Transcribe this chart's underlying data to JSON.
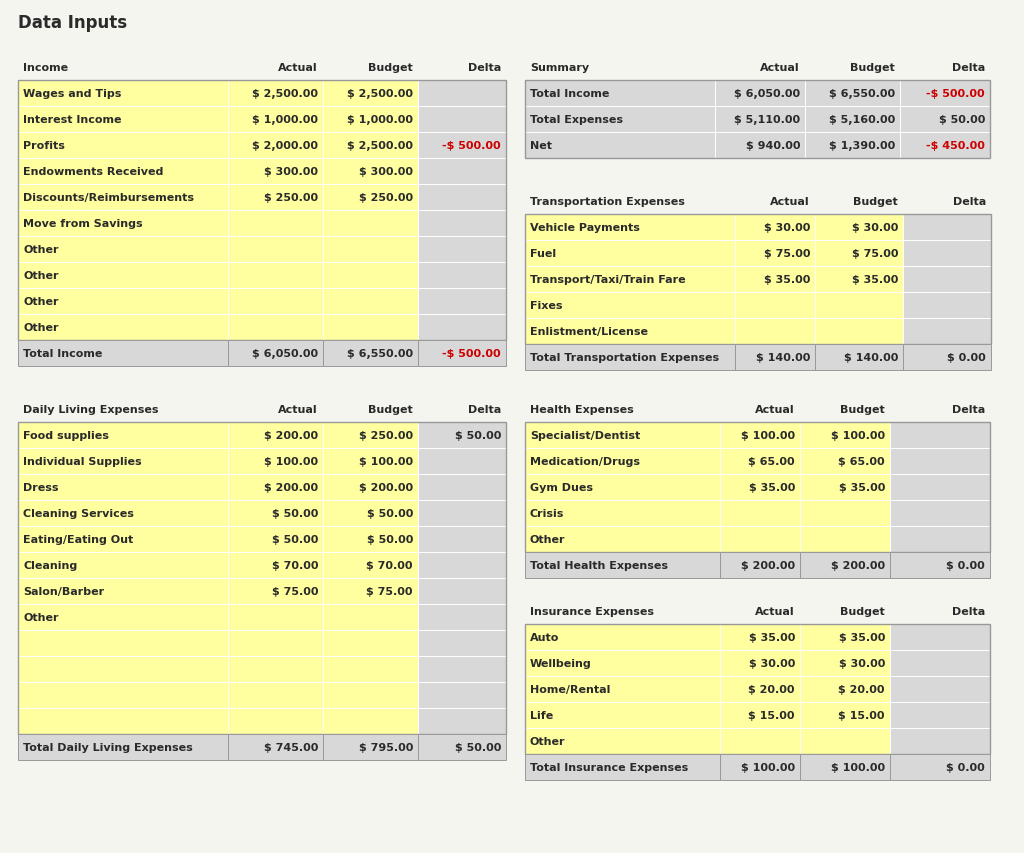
{
  "title": "Data Inputs",
  "bg_color": "#f5f5f0",
  "yellow": "#ffffa0",
  "light_gray": "#d8d8d8",
  "white": "#ffffff",
  "dark_text": "#2a2a2a",
  "red_text": "#cc0000",
  "border_color": "#999999",
  "income_header": [
    "Income",
    "Actual",
    "Budget",
    "Delta"
  ],
  "income_rows": [
    [
      "Wages and Tips",
      "$ 2,500.00",
      "$ 2,500.00",
      ""
    ],
    [
      "Interest Income",
      "$ 1,000.00",
      "$ 1,000.00",
      ""
    ],
    [
      "Profits",
      "$ 2,000.00",
      "$ 2,500.00",
      "-$ 500.00"
    ],
    [
      "Endowments Received",
      "$ 300.00",
      "$ 300.00",
      ""
    ],
    [
      "Discounts/Reimbursements",
      "$ 250.00",
      "$ 250.00",
      ""
    ],
    [
      "Move from Savings",
      "",
      "",
      ""
    ],
    [
      "Other",
      "",
      "",
      ""
    ],
    [
      "Other",
      "",
      "",
      ""
    ],
    [
      "Other",
      "",
      "",
      ""
    ],
    [
      "Other",
      "",
      "",
      ""
    ]
  ],
  "income_total": [
    "Total Income",
    "$ 6,050.00",
    "$ 6,550.00",
    "-$ 500.00"
  ],
  "summary_header": [
    "Summary",
    "Actual",
    "Budget",
    "Delta"
  ],
  "summary_rows": [
    [
      "Total Income",
      "$ 6,050.00",
      "$ 6,550.00",
      "-$ 500.00"
    ],
    [
      "Total Expenses",
      "$ 5,110.00",
      "$ 5,160.00",
      "$ 50.00"
    ],
    [
      "Net",
      "$ 940.00",
      "$ 1,390.00",
      "-$ 450.00"
    ]
  ],
  "transport_header": [
    "Transportation Expenses",
    "Actual",
    "Budget",
    "Delta"
  ],
  "transport_rows": [
    [
      "Vehicle Payments",
      "$ 30.00",
      "$ 30.00",
      ""
    ],
    [
      "Fuel",
      "$ 75.00",
      "$ 75.00",
      ""
    ],
    [
      "Transport/Taxi/Train Fare",
      "$ 35.00",
      "$ 35.00",
      ""
    ],
    [
      "Fixes",
      "",
      "",
      ""
    ],
    [
      "Enlistment/License",
      "",
      "",
      ""
    ]
  ],
  "transport_total": [
    "Total Transportation Expenses",
    "$ 140.00",
    "$ 140.00",
    "$ 0.00"
  ],
  "daily_header": [
    "Daily Living Expenses",
    "Actual",
    "Budget",
    "Delta"
  ],
  "daily_rows": [
    [
      "Food supplies",
      "$ 200.00",
      "$ 250.00",
      "$ 50.00"
    ],
    [
      "Individual Supplies",
      "$ 100.00",
      "$ 100.00",
      ""
    ],
    [
      "Dress",
      "$ 200.00",
      "$ 200.00",
      ""
    ],
    [
      "Cleaning Services",
      "$ 50.00",
      "$ 50.00",
      ""
    ],
    [
      "Eating/Eating Out",
      "$ 50.00",
      "$ 50.00",
      ""
    ],
    [
      "Cleaning",
      "$ 70.00",
      "$ 70.00",
      ""
    ],
    [
      "Salon/Barber",
      "$ 75.00",
      "$ 75.00",
      ""
    ],
    [
      "Other",
      "",
      "",
      ""
    ],
    [
      "",
      "",
      "",
      ""
    ],
    [
      "",
      "",
      "",
      ""
    ],
    [
      "",
      "",
      "",
      ""
    ],
    [
      "",
      "",
      "",
      ""
    ]
  ],
  "daily_total": [
    "Total Daily Living Expenses",
    "$ 745.00",
    "$ 795.00",
    "$ 50.00"
  ],
  "health_header": [
    "Health Expenses",
    "Actual",
    "Budget",
    "Delta"
  ],
  "health_rows": [
    [
      "Specialist/Dentist",
      "$ 100.00",
      "$ 100.00",
      ""
    ],
    [
      "Medication/Drugs",
      "$ 65.00",
      "$ 65.00",
      ""
    ],
    [
      "Gym Dues",
      "$ 35.00",
      "$ 35.00",
      ""
    ],
    [
      "Crisis",
      "",
      "",
      ""
    ],
    [
      "Other",
      "",
      "",
      ""
    ]
  ],
  "health_total": [
    "Total Health Expenses",
    "$ 200.00",
    "$ 200.00",
    "$ 0.00"
  ],
  "insurance_header": [
    "Insurance Expenses",
    "Actual",
    "Budget",
    "Delta"
  ],
  "insurance_rows": [
    [
      "Auto",
      "$ 35.00",
      "$ 35.00",
      ""
    ],
    [
      "Wellbeing",
      "$ 30.00",
      "$ 30.00",
      ""
    ],
    [
      "Home/Rental",
      "$ 20.00",
      "$ 20.00",
      ""
    ],
    [
      "Life",
      "$ 15.00",
      "$ 15.00",
      ""
    ],
    [
      "Other",
      "",
      "",
      ""
    ]
  ],
  "insurance_total": [
    "Total Insurance Expenses",
    "$ 100.00",
    "$ 100.00",
    "$ 0.00"
  ]
}
